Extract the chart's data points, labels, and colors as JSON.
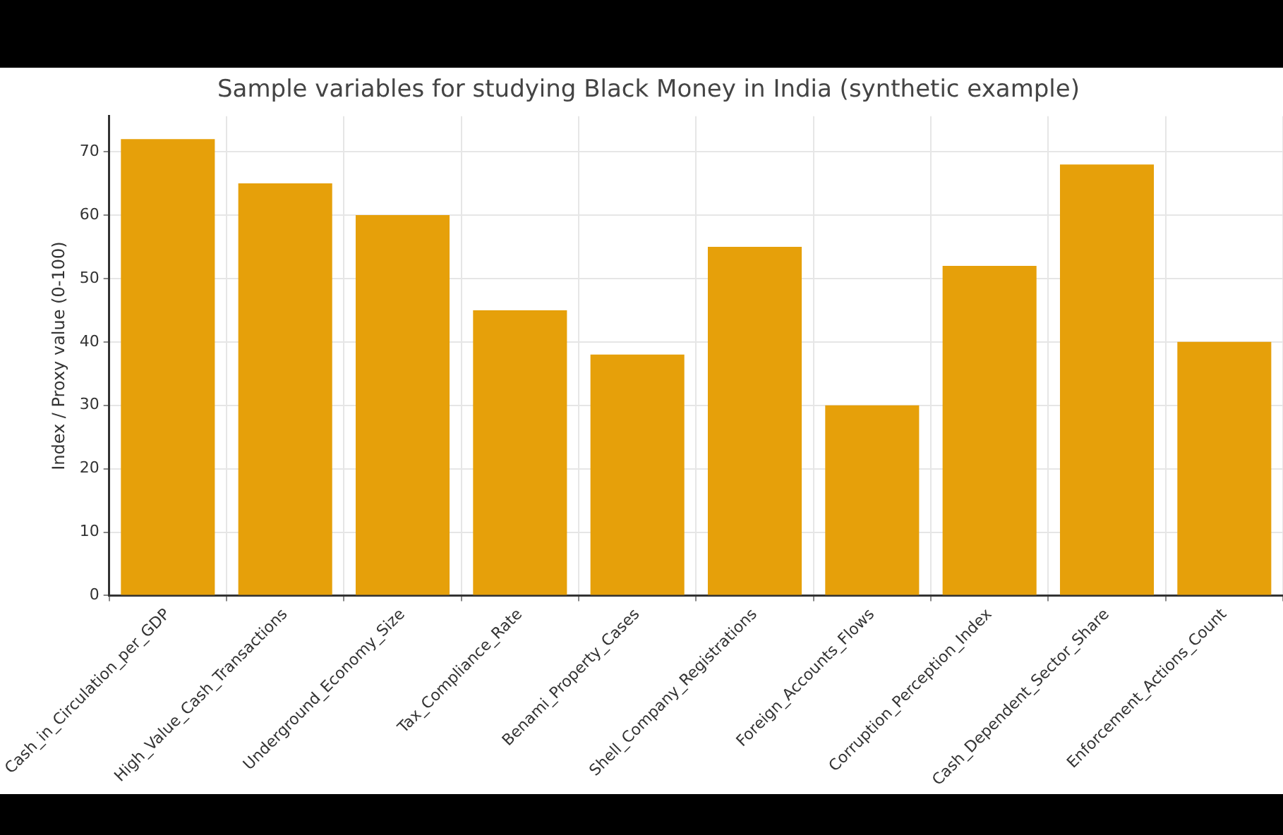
{
  "chart_data": {
    "type": "bar",
    "title": "Sample variables for studying Black Money in India (synthetic example)",
    "ylabel": "Index / Proxy value (0-100)",
    "categories": [
      "Cash_in_Circulation_per_GDP",
      "High_Value_Cash_Transactions",
      "Underground_Economy_Size",
      "Tax_Compliance_Rate",
      "Benami_Property_Cases",
      "Shell_Company_Registrations",
      "Foreign_Accounts_Flows",
      "Corruption_Perception_Index",
      "Cash_Dependent_Sector_Share",
      "Enforcement_Actions_Count"
    ],
    "values": [
      72,
      65,
      60,
      45,
      38,
      55,
      30,
      52,
      68,
      40
    ],
    "color": "#e6a00a",
    "ylim": [
      0,
      75.6
    ],
    "yticks": [
      0,
      10,
      20,
      30,
      40,
      50,
      60,
      70
    ],
    "grid": true,
    "legend": false
  }
}
